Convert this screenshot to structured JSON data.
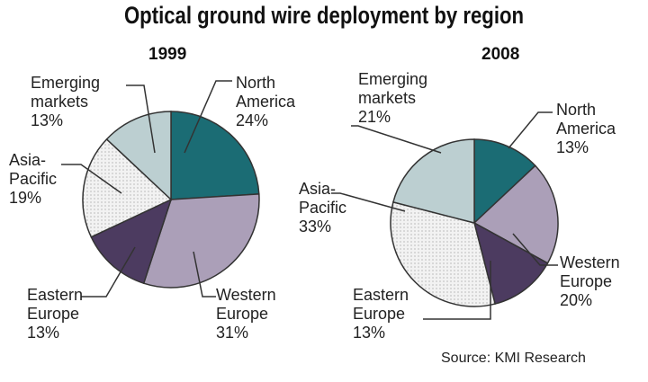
{
  "title": "Optical ground wire deployment by region",
  "source": "Source: KMI Research",
  "chart_data": [
    {
      "type": "pie",
      "title": "1999",
      "categories": [
        "North\nAmerica",
        "Western\nEurope",
        "Eastern\nEurope",
        "Asia-\nPacific",
        "Emerging\nmarkets"
      ],
      "values": [
        24,
        31,
        13,
        19,
        13
      ],
      "value_labels": [
        "24%",
        "31%",
        "13%",
        "19%",
        "13%"
      ],
      "colors": [
        "#1b6c74",
        "#ab9fb8",
        "#4c3b60",
        "#efefef",
        "#bccfd1"
      ]
    },
    {
      "type": "pie",
      "title": "2008",
      "categories": [
        "North\nAmerica",
        "Western\nEurope",
        "Eastern\nEurope",
        "Asia-\nPacific",
        "Emerging\nmarkets"
      ],
      "values": [
        13,
        20,
        13,
        33,
        21
      ],
      "value_labels": [
        "13%",
        "20%",
        "13%",
        "33%",
        "21%"
      ],
      "colors": [
        "#1b6c74",
        "#ab9fb8",
        "#4c3b60",
        "#efefef",
        "#bccfd1"
      ]
    }
  ]
}
